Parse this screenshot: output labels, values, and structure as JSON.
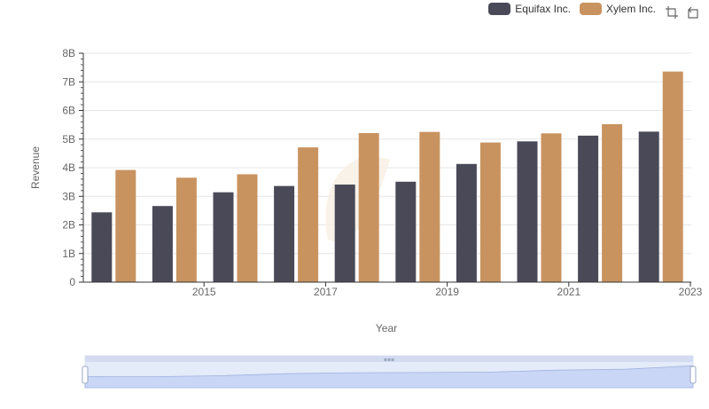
{
  "legend": {
    "series_a": "Equifax Inc.",
    "series_b": "Xylem Inc."
  },
  "toolbar": {
    "zoom_icon": "zoom-select-icon",
    "restore_icon": "restore-icon"
  },
  "colors": {
    "series_a": "#4a4958",
    "series_b": "#c99360",
    "grid": "#e5e5e5",
    "axis": "#333333",
    "slider_fill": "#d6e1f8",
    "slider_border": "#c7d3ea"
  },
  "chart_data": {
    "type": "bar",
    "categories": [
      "2014",
      "2015",
      "2016",
      "2017",
      "2018",
      "2019",
      "2020",
      "2021",
      "2022",
      "2023"
    ],
    "x_tick_labels": [
      "2015",
      "2017",
      "2019",
      "2021",
      "2023"
    ],
    "y_tick_labels": [
      "0",
      "1B",
      "2B",
      "3B",
      "4B",
      "5B",
      "6B",
      "7B",
      "8B"
    ],
    "ylim": [
      0,
      8000000000
    ],
    "xlabel": "Year",
    "ylabel": "Revenue",
    "grid": true,
    "legend_position": "top-right",
    "series": [
      {
        "name": "Equifax Inc.",
        "values": [
          2440000000,
          2660000000,
          3140000000,
          3360000000,
          3410000000,
          3510000000,
          4130000000,
          4920000000,
          5120000000,
          5260000000
        ]
      },
      {
        "name": "Xylem Inc.",
        "values": [
          3920000000,
          3650000000,
          3770000000,
          4710000000,
          5210000000,
          5250000000,
          4880000000,
          5200000000,
          5520000000,
          7360000000
        ]
      }
    ]
  }
}
